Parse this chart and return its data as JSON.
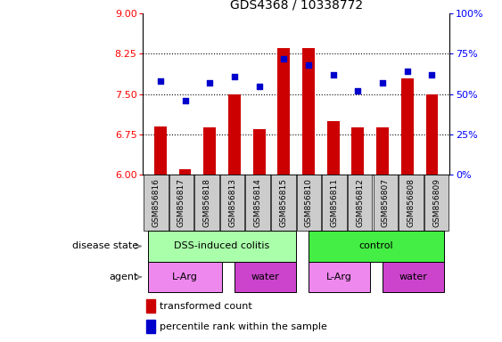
{
  "title": "GDS4368 / 10338772",
  "samples": [
    "GSM856816",
    "GSM856817",
    "GSM856818",
    "GSM856813",
    "GSM856814",
    "GSM856815",
    "GSM856810",
    "GSM856811",
    "GSM856812",
    "GSM856807",
    "GSM856808",
    "GSM856809"
  ],
  "bar_values": [
    6.9,
    6.1,
    6.88,
    7.5,
    6.85,
    8.35,
    8.35,
    7.0,
    6.88,
    6.88,
    7.8,
    7.5
  ],
  "dot_values": [
    58,
    46,
    57,
    61,
    55,
    72,
    68,
    62,
    52,
    57,
    64,
    62
  ],
  "bar_color": "#cc0000",
  "dot_color": "#0000cc",
  "ylim_left": [
    6,
    9
  ],
  "ylim_right": [
    0,
    100
  ],
  "yticks_left": [
    6,
    6.75,
    7.5,
    8.25,
    9
  ],
  "yticks_right": [
    0,
    25,
    50,
    75,
    100
  ],
  "ytick_labels_right": [
    "0%",
    "25%",
    "50%",
    "75%",
    "100%"
  ],
  "hlines": [
    6.75,
    7.5,
    8.25
  ],
  "dss_color": "#aaffaa",
  "ctrl_color": "#44ee44",
  "larg_color": "#ee88ee",
  "water_color": "#cc44cc",
  "bar_width": 0.5,
  "xlim": [
    -0.7,
    11.7
  ]
}
